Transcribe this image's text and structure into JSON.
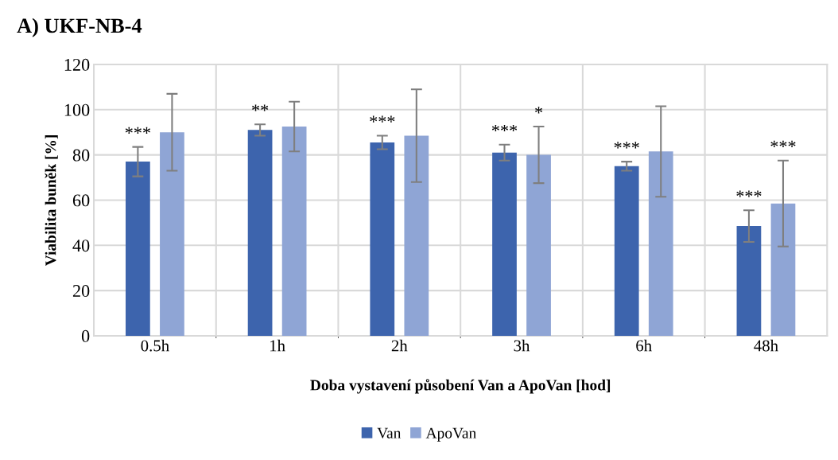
{
  "chart_data": {
    "type": "bar",
    "title": "A) UKF-NB-4",
    "xlabel": "Doba vystavení působení Van a ApoVan [hod]",
    "ylabel": "Viabilita buněk [%]",
    "categories": [
      "0.5h",
      "1h",
      "2h",
      "3h",
      "6h",
      "48h"
    ],
    "series": [
      {
        "name": "Van",
        "color": "#3d64ad",
        "values": [
          77,
          91,
          85.5,
          81,
          75,
          48.5
        ],
        "errors": [
          6.5,
          2.5,
          3,
          3.5,
          2,
          7
        ],
        "value_labels": [
          "***",
          "**",
          "***",
          "***",
          "***",
          "***"
        ]
      },
      {
        "name": "ApoVan",
        "color": "#8fa5d5",
        "values": [
          90,
          92.5,
          88.5,
          80,
          81.5,
          58.5
        ],
        "errors": [
          17,
          11,
          20.5,
          12.5,
          20,
          19
        ],
        "value_labels": [
          null,
          null,
          null,
          "*",
          null,
          "***"
        ]
      }
    ],
    "ylim": [
      0,
      120
    ],
    "yticks": [
      0,
      20,
      40,
      60,
      80,
      100,
      120
    ],
    "grid": true,
    "legend": "bottom"
  }
}
